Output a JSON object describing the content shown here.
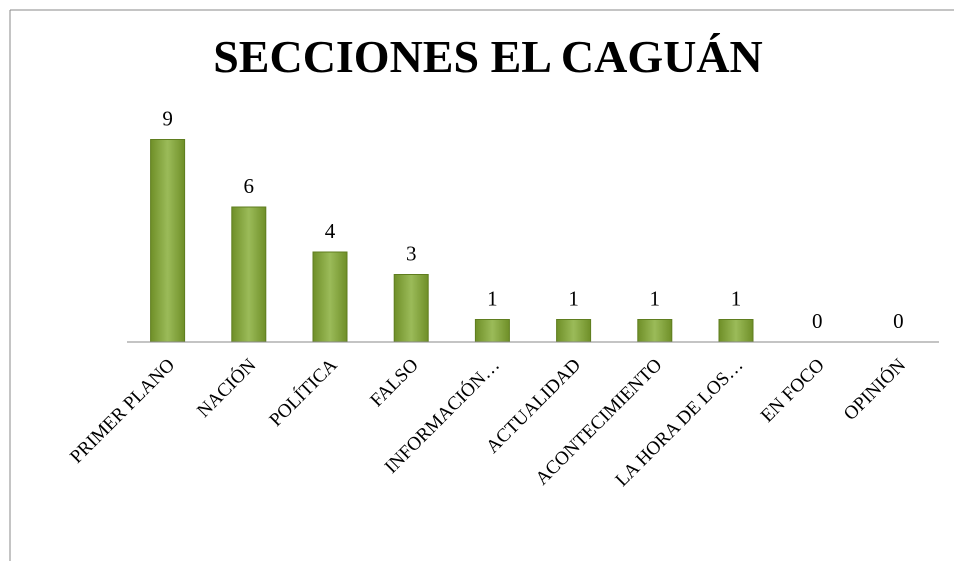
{
  "chart_data": {
    "type": "bar",
    "title": "SECCIONES EL CAGUÁN",
    "categories": [
      "PRIMER PLANO",
      "NACIÓN",
      "POLÍTICA",
      "FALSO",
      "INFORMACIÓN…",
      "ACTUALIDAD",
      "ACONTECIMIENTO",
      "LA HORA DE LOS…",
      "EN FOCO",
      "OPINIÓN"
    ],
    "values": [
      9,
      6,
      4,
      3,
      1,
      1,
      1,
      1,
      0,
      0
    ],
    "color": "#9bbb59",
    "ylim": [
      0,
      10
    ]
  }
}
